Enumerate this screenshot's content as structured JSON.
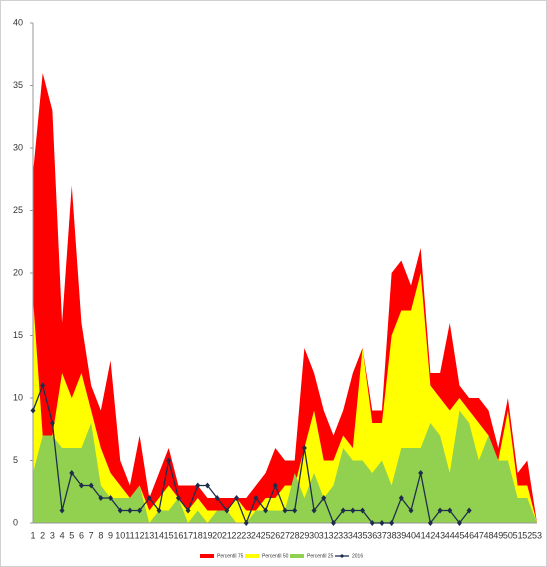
{
  "chart_data": {
    "type": "area-line",
    "categories": [
      "1",
      "2",
      "3",
      "4",
      "5",
      "6",
      "7",
      "8",
      "9",
      "10",
      "11",
      "12",
      "13",
      "14",
      "15",
      "16",
      "17",
      "18",
      "19",
      "20",
      "21",
      "22",
      "23",
      "24",
      "25",
      "26",
      "27",
      "28",
      "29",
      "30",
      "31",
      "32",
      "33",
      "34",
      "35",
      "36",
      "37",
      "38",
      "39",
      "40",
      "41",
      "42",
      "43",
      "44",
      "45",
      "46",
      "47",
      "48",
      "49",
      "50",
      "51",
      "52",
      "53"
    ],
    "series": [
      {
        "name": "Percentil 75",
        "color": "#ff0000",
        "kind": "area",
        "values": [
          28,
          36,
          33,
          16,
          27,
          16,
          11,
          9,
          13,
          5,
          3,
          7,
          2,
          4,
          6,
          3,
          3,
          3,
          2,
          2,
          2,
          2,
          2,
          3,
          4,
          6,
          5,
          5,
          14,
          12,
          9,
          7,
          9,
          12,
          14,
          9,
          9,
          20,
          21,
          19,
          22,
          12,
          12,
          16,
          11,
          10,
          10,
          9,
          6,
          10,
          4,
          5,
          0
        ]
      },
      {
        "name": "Percentil 50",
        "color": "#ffff00",
        "kind": "area",
        "values": [
          18,
          7,
          7,
          12,
          10,
          12,
          9,
          6,
          4,
          3,
          2,
          3,
          1,
          2,
          3,
          2,
          1,
          2,
          1,
          1,
          1,
          2,
          1,
          1,
          2,
          2,
          3,
          3,
          6,
          9,
          5,
          5,
          7,
          6,
          14,
          8,
          8,
          15,
          17,
          17,
          20,
          11,
          10,
          9,
          10,
          9,
          8,
          7,
          5,
          9,
          3,
          3,
          0
        ]
      },
      {
        "name": "Percentil 25",
        "color": "#92d050",
        "kind": "area",
        "values": [
          4,
          7,
          7,
          6,
          6,
          6,
          8,
          3,
          2,
          2,
          2,
          3,
          0,
          1,
          1,
          2,
          0,
          1,
          0,
          1,
          1,
          0,
          0,
          1,
          1,
          1,
          1,
          4,
          2,
          4,
          2,
          3,
          6,
          5,
          5,
          4,
          5,
          3,
          6,
          6,
          6,
          8,
          7,
          4,
          9,
          8,
          5,
          7,
          5,
          5,
          2,
          2,
          0
        ]
      },
      {
        "name": "2016",
        "color": "#1f2d4d",
        "kind": "line",
        "values": [
          9,
          11,
          8,
          1,
          4,
          3,
          3,
          2,
          2,
          1,
          1,
          1,
          2,
          1,
          5,
          2,
          1,
          3,
          3,
          2,
          1,
          2,
          0,
          2,
          1,
          3,
          1,
          1,
          6,
          1,
          2,
          0,
          1,
          1,
          1,
          0,
          0,
          0,
          2,
          1,
          4,
          0,
          1,
          1,
          0,
          1,
          null,
          null,
          null,
          null,
          null,
          null,
          null
        ]
      }
    ],
    "ylim": [
      0,
      40
    ],
    "yticks": [
      0,
      5,
      10,
      15,
      20,
      25,
      30,
      35,
      40
    ],
    "grid": false,
    "legend": "bottom"
  }
}
